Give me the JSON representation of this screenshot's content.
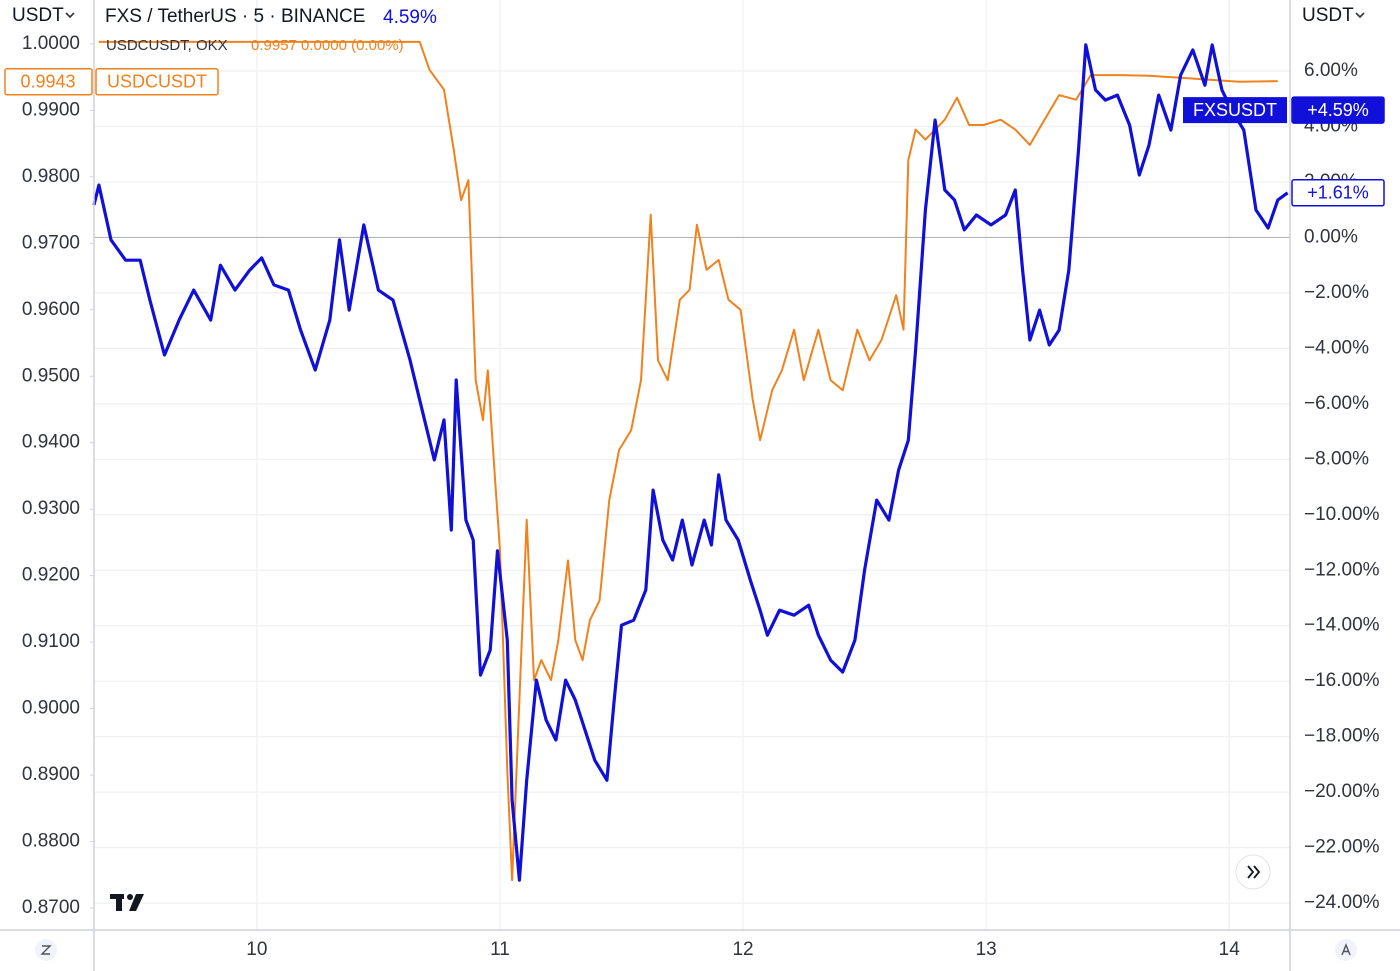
{
  "chart_data": {
    "type": "line",
    "title": "FXS / TetherUS · 5 · BINANCE",
    "title_change": "4.59%",
    "y_unit": "USDT",
    "y2_unit": "USDT",
    "legend": {
      "label": "USDCUSDT, OKX",
      "values": "0.9957 0.0000 (0.00%)"
    },
    "xlim": [
      9.33,
      14.25
    ],
    "xticks": [
      10,
      11,
      12,
      13,
      14
    ],
    "ylim": [
      0.8667,
      1.0066
    ],
    "yticks": [
      {
        "value": 1.0,
        "label": "1.0000"
      },
      {
        "value": 0.99,
        "label": "0.9900"
      },
      {
        "value": 0.98,
        "label": "0.9800"
      },
      {
        "value": 0.97,
        "label": "0.9700"
      },
      {
        "value": 0.96,
        "label": "0.9600"
      },
      {
        "value": 0.95,
        "label": "0.9500"
      },
      {
        "value": 0.94,
        "label": "0.9400"
      },
      {
        "value": 0.93,
        "label": "0.9300"
      },
      {
        "value": 0.92,
        "label": "0.9200"
      },
      {
        "value": 0.91,
        "label": "0.9100"
      },
      {
        "value": 0.9,
        "label": "0.9000"
      },
      {
        "value": 0.89,
        "label": "0.8900"
      },
      {
        "value": 0.88,
        "label": "0.8800"
      },
      {
        "value": 0.87,
        "label": "0.8700"
      }
    ],
    "y2lim": [
      -24.97,
      8.56
    ],
    "y2ticks": [
      {
        "value": 6,
        "label": "6.00%"
      },
      {
        "value": 4,
        "label": "4.00%"
      },
      {
        "value": 2,
        "label": "2.00%"
      },
      {
        "value": 0,
        "label": "0.00%"
      },
      {
        "value": -2,
        "label": "−2.00%"
      },
      {
        "value": -4,
        "label": "−4.00%"
      },
      {
        "value": -6,
        "label": "−6.00%"
      },
      {
        "value": -8,
        "label": "−8.00%"
      },
      {
        "value": -10,
        "label": "−10.00%"
      },
      {
        "value": -12,
        "label": "−12.00%"
      },
      {
        "value": -14,
        "label": "−14.00%"
      },
      {
        "value": -16,
        "label": "−16.00%"
      },
      {
        "value": -18,
        "label": "−18.00%"
      },
      {
        "value": -20,
        "label": "−20.00%"
      },
      {
        "value": -22,
        "label": "−22.00%"
      },
      {
        "value": -24,
        "label": "−24.00%"
      }
    ],
    "grid": true,
    "series": [
      {
        "name": "USDCUSDT",
        "axis": "y",
        "color": "#f0821e",
        "tags": [
          0.9943
        ],
        "x": [
          9.35,
          10.67,
          10.71,
          10.77,
          10.81,
          10.84,
          10.87,
          10.9,
          10.93,
          10.95,
          10.98,
          11.0,
          11.03,
          11.05,
          11.08,
          11.11,
          11.14,
          11.17,
          11.21,
          11.24,
          11.28,
          11.31,
          11.34,
          11.37,
          11.41,
          11.45,
          11.49,
          11.54,
          11.58,
          11.62,
          11.65,
          11.69,
          11.74,
          11.78,
          11.81,
          11.85,
          11.9,
          11.94,
          11.99,
          12.04,
          12.07,
          12.12,
          12.16,
          12.21,
          12.25,
          12.31,
          12.36,
          12.41,
          12.47,
          12.52,
          12.57,
          12.63,
          12.66,
          12.68,
          12.71,
          12.75,
          12.79,
          12.83,
          12.88,
          12.93,
          12.99,
          13.06,
          13.12,
          13.18,
          13.24,
          13.3,
          13.37,
          13.43,
          13.55,
          13.67,
          13.8,
          13.92,
          14.04,
          14.2
        ],
        "values": [
          1.0003,
          1.0003,
          0.9961,
          0.9931,
          0.984,
          0.9765,
          0.9795,
          0.9494,
          0.9434,
          0.9509,
          0.9344,
          0.9238,
          0.8907,
          0.8742,
          0.9013,
          0.9284,
          0.9043,
          0.9073,
          0.9043,
          0.9103,
          0.9223,
          0.9103,
          0.9073,
          0.9133,
          0.9163,
          0.9314,
          0.9389,
          0.9419,
          0.9494,
          0.9743,
          0.9524,
          0.9494,
          0.9615,
          0.963,
          0.9728,
          0.966,
          0.9675,
          0.9615,
          0.96,
          0.9464,
          0.9404,
          0.9479,
          0.9509,
          0.957,
          0.9494,
          0.957,
          0.9494,
          0.9479,
          0.957,
          0.9524,
          0.9555,
          0.9622,
          0.957,
          0.9825,
          0.9871,
          0.9856,
          0.9871,
          0.9886,
          0.9919,
          0.9878,
          0.9878,
          0.9886,
          0.9871,
          0.9848,
          0.9886,
          0.9923,
          0.9916,
          0.9953,
          0.9953,
          0.9952,
          0.9949,
          0.9946,
          0.9943,
          0.9944
        ]
      },
      {
        "name": "FXSUSDT",
        "axis": "y2",
        "color": "#1010d8",
        "tags": [
          {
            "value": 4.59,
            "label": "+4.59%"
          },
          {
            "value": 1.61,
            "label": "+1.61%"
          }
        ],
        "x": [
          9.33,
          9.35,
          9.4,
          9.46,
          9.52,
          9.56,
          9.62,
          9.68,
          9.74,
          9.81,
          9.85,
          9.91,
          9.97,
          10.02,
          10.07,
          10.13,
          10.18,
          10.24,
          10.3,
          10.34,
          10.38,
          10.44,
          10.5,
          10.56,
          10.63,
          10.67,
          10.73,
          10.77,
          10.8,
          10.82,
          10.86,
          10.89,
          10.92,
          10.96,
          10.99,
          11.03,
          11.05,
          11.08,
          11.11,
          11.15,
          11.19,
          11.23,
          11.27,
          11.31,
          11.35,
          11.39,
          11.44,
          11.47,
          11.5,
          11.55,
          11.6,
          11.63,
          11.67,
          11.71,
          11.75,
          11.79,
          11.84,
          11.87,
          11.9,
          11.93,
          11.98,
          12.03,
          12.07,
          12.1,
          12.15,
          12.21,
          12.27,
          12.31,
          12.36,
          12.41,
          12.46,
          12.5,
          12.55,
          12.6,
          12.64,
          12.68,
          12.71,
          12.75,
          12.79,
          12.83,
          12.87,
          12.91,
          12.96,
          13.02,
          13.08,
          13.12,
          13.15,
          13.18,
          13.22,
          13.26,
          13.3,
          13.34,
          13.38,
          13.41,
          13.45,
          13.49,
          13.54,
          13.59,
          13.63,
          13.67,
          13.71,
          13.76,
          13.8,
          13.85,
          13.9,
          13.93,
          13.97,
          14.01,
          14.06,
          14.11,
          14.16,
          14.2,
          14.24
        ],
        "values": [
          1.17,
          1.89,
          -0.09,
          -0.82,
          -0.82,
          -2.26,
          -4.24,
          -2.98,
          -1.9,
          -2.98,
          -1.0,
          -1.9,
          -1.18,
          -0.74,
          -1.71,
          -1.9,
          -3.34,
          -4.78,
          -2.98,
          -0.09,
          -2.62,
          0.45,
          -1.9,
          -2.26,
          -4.42,
          -5.86,
          -8.02,
          -6.58,
          -10.55,
          -5.14,
          -10.19,
          -10.91,
          -15.78,
          -14.88,
          -11.3,
          -14.52,
          -20.29,
          -23.17,
          -19.57,
          -15.96,
          -17.4,
          -18.12,
          -15.96,
          -16.68,
          -17.76,
          -18.85,
          -19.57,
          -16.68,
          -13.98,
          -13.8,
          -12.71,
          -9.11,
          -10.91,
          -11.63,
          -10.19,
          -11.81,
          -10.19,
          -11.09,
          -8.56,
          -10.19,
          -10.91,
          -12.35,
          -13.44,
          -14.34,
          -13.44,
          -13.62,
          -13.26,
          -14.34,
          -15.24,
          -15.67,
          -14.52,
          -11.99,
          -9.47,
          -10.19,
          -8.39,
          -7.31,
          -4.06,
          0.99,
          4.23,
          1.71,
          1.35,
          0.27,
          0.81,
          0.45,
          0.81,
          1.71,
          -1.18,
          -3.7,
          -2.62,
          -3.88,
          -3.34,
          -1.18,
          3.15,
          6.94,
          5.32,
          4.95,
          5.13,
          4.05,
          2.25,
          3.33,
          5.13,
          3.87,
          5.85,
          6.76,
          5.49,
          6.94,
          5.32,
          4.59,
          3.87,
          0.99,
          0.34,
          1.35,
          1.61
        ]
      }
    ]
  }
}
